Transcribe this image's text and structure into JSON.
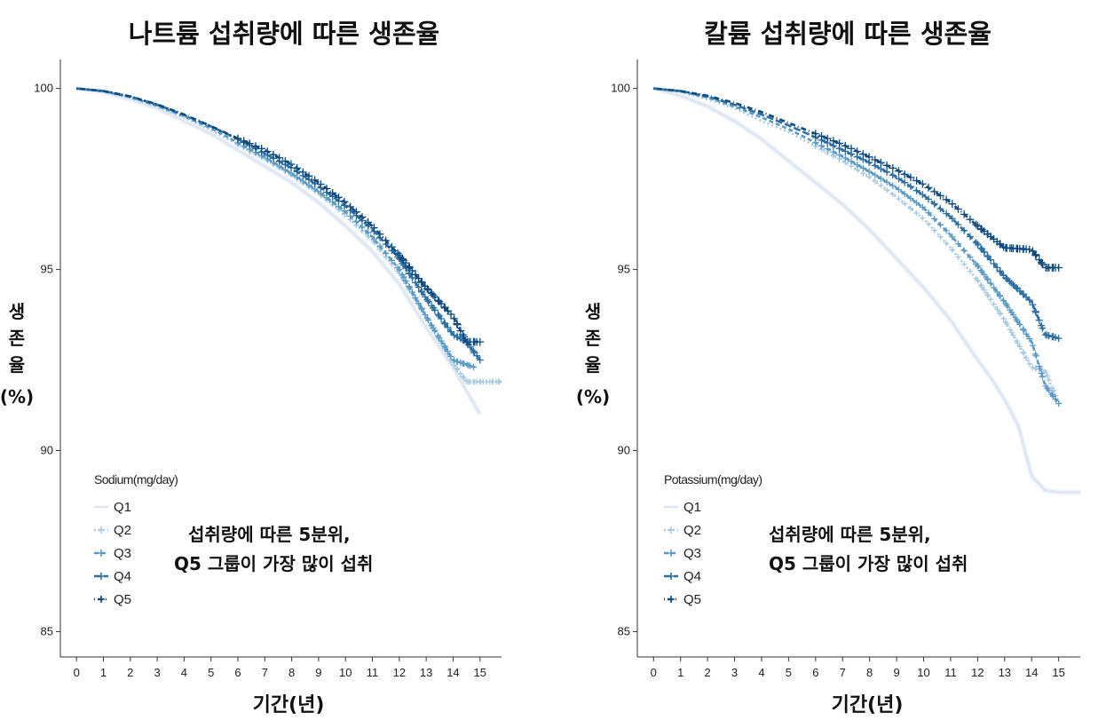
{
  "chart_data": [
    {
      "type": "line",
      "title": "나트륨 섭취량에 따른 생존율",
      "xlabel": "기간(년)",
      "ylabel_lines": [
        "생",
        "존",
        "율",
        "(%)"
      ],
      "xlim": [
        -0.6,
        15.8
      ],
      "ylim": [
        84.3,
        100.8
      ],
      "xticks": [
        "0",
        "1",
        "2",
        "3",
        "4",
        "5",
        "6",
        "7",
        "8",
        "9",
        "10",
        "11",
        "12",
        "13",
        "14",
        "15"
      ],
      "yticks": [
        "85",
        "90",
        "95",
        "100"
      ],
      "legend_title": "Sodium(mg/day)",
      "legend_position": "bottom-left",
      "annotation": [
        "섭취량에 따른 5분위,",
        "Q5 그룹이 가장 많이 섭취"
      ],
      "series": [
        {
          "name": "Q1",
          "color": "#dde6f2",
          "x": [
            0,
            1,
            2,
            3,
            4,
            5,
            6,
            7,
            8,
            9,
            10,
            11,
            12,
            13,
            14,
            15
          ],
          "y": [
            100,
            99.9,
            99.7,
            99.45,
            99.1,
            98.75,
            98.3,
            97.85,
            97.4,
            96.85,
            96.2,
            95.5,
            94.6,
            93.4,
            92.3,
            91.0
          ]
        },
        {
          "name": "Q2",
          "color": "#a9c9e0",
          "x": [
            0,
            1,
            2,
            3,
            4,
            5,
            6,
            7,
            8,
            9,
            10,
            11,
            12,
            13,
            14,
            14.5,
            15,
            15.8
          ],
          "y": [
            100,
            99.92,
            99.75,
            99.5,
            99.2,
            98.85,
            98.45,
            98.05,
            97.6,
            97.1,
            96.5,
            95.8,
            94.9,
            93.7,
            92.4,
            91.9,
            91.9,
            91.9
          ]
        },
        {
          "name": "Q3",
          "color": "#5b9ac4",
          "x": [
            0,
            1,
            2,
            3,
            4,
            5,
            6,
            7,
            8,
            9,
            10,
            11,
            12,
            13,
            14,
            14.8
          ],
          "y": [
            100,
            99.92,
            99.76,
            99.52,
            99.23,
            98.9,
            98.5,
            98.1,
            97.65,
            97.15,
            96.6,
            95.9,
            95.0,
            93.7,
            92.5,
            92.3
          ]
        },
        {
          "name": "Q4",
          "color": "#2c6fa3",
          "x": [
            0,
            1,
            2,
            3,
            4,
            5,
            6,
            7,
            8,
            9,
            10,
            11,
            12,
            13,
            14,
            14.5,
            15
          ],
          "y": [
            100,
            99.93,
            99.78,
            99.55,
            99.27,
            98.95,
            98.6,
            98.2,
            97.8,
            97.3,
            96.75,
            96.1,
            95.3,
            94.2,
            93.2,
            93.0,
            92.5
          ]
        },
        {
          "name": "Q5",
          "color": "#0d4a80",
          "x": [
            0,
            1,
            2,
            3,
            4,
            5,
            6,
            7,
            8,
            9,
            10,
            11,
            12,
            13,
            14,
            14.5,
            15
          ],
          "y": [
            100,
            99.93,
            99.78,
            99.56,
            99.28,
            98.96,
            98.62,
            98.3,
            97.9,
            97.4,
            96.85,
            96.2,
            95.4,
            94.5,
            93.7,
            93.0,
            93.0
          ]
        }
      ]
    },
    {
      "type": "line",
      "title": "칼륨 섭취량에 따른 생존율",
      "xlabel": "기간(년)",
      "ylabel_lines": [
        "생",
        "존",
        "율",
        "(%)"
      ],
      "xlim": [
        -0.6,
        15.8
      ],
      "ylim": [
        84.3,
        100.8
      ],
      "xticks": [
        "0",
        "1",
        "2",
        "3",
        "4",
        "5",
        "6",
        "7",
        "8",
        "9",
        "10",
        "11",
        "12",
        "13",
        "14",
        "15"
      ],
      "yticks": [
        "85",
        "90",
        "95",
        "100"
      ],
      "legend_title": "Potassium(mg/day)",
      "legend_position": "bottom-left",
      "annotation": [
        "섭취량에 따른 5분위,",
        "Q5 그룹이 가장 많이 섭취"
      ],
      "series": [
        {
          "name": "Q1",
          "color": "#dde6f2",
          "x": [
            0,
            1,
            2,
            3,
            4,
            5,
            6,
            7,
            8,
            9,
            10,
            11,
            12,
            12.5,
            13,
            13.5,
            14,
            14.5,
            15,
            15.8
          ],
          "y": [
            100,
            99.8,
            99.5,
            99.1,
            98.6,
            98.0,
            97.4,
            96.8,
            96.1,
            95.3,
            94.5,
            93.6,
            92.5,
            92.0,
            91.4,
            90.7,
            89.3,
            88.9,
            88.85,
            88.85
          ]
        },
        {
          "name": "Q2",
          "color": "#a9c9e0",
          "x": [
            0,
            1,
            2,
            3,
            4,
            5,
            6,
            7,
            8,
            9,
            10,
            11,
            12,
            13,
            14,
            14.5,
            15
          ],
          "y": [
            100,
            99.9,
            99.7,
            99.45,
            99.1,
            98.8,
            98.4,
            98.0,
            97.55,
            97.0,
            96.4,
            95.6,
            94.7,
            93.6,
            92.3,
            92.2,
            91.3
          ]
        },
        {
          "name": "Q3",
          "color": "#5b9ac4",
          "x": [
            0,
            1,
            2,
            3,
            4,
            5,
            6,
            7,
            8,
            9,
            10,
            11,
            12,
            13,
            14,
            14.5,
            15
          ],
          "y": [
            100,
            99.92,
            99.75,
            99.5,
            99.2,
            98.88,
            98.5,
            98.12,
            97.7,
            97.25,
            96.7,
            95.95,
            95.1,
            94.1,
            93.0,
            91.8,
            91.3
          ]
        },
        {
          "name": "Q4",
          "color": "#2c6fa3",
          "x": [
            0,
            1,
            2,
            3,
            4,
            5,
            6,
            7,
            8,
            9,
            10,
            11,
            12,
            13,
            14,
            14.5,
            15
          ],
          "y": [
            100,
            99.93,
            99.78,
            99.55,
            99.28,
            98.98,
            98.65,
            98.3,
            97.95,
            97.55,
            97.05,
            96.45,
            95.7,
            94.8,
            94.1,
            93.2,
            93.1
          ]
        },
        {
          "name": "Q5",
          "color": "#0d4a80",
          "x": [
            0,
            1,
            2,
            3,
            4,
            5,
            6,
            7,
            8,
            9,
            10,
            11,
            12,
            13,
            14,
            14.5,
            15
          ],
          "y": [
            100,
            99.93,
            99.8,
            99.6,
            99.35,
            99.05,
            98.75,
            98.45,
            98.1,
            97.75,
            97.35,
            96.85,
            96.2,
            95.6,
            95.55,
            95.05,
            95.05
          ]
        }
      ]
    }
  ]
}
